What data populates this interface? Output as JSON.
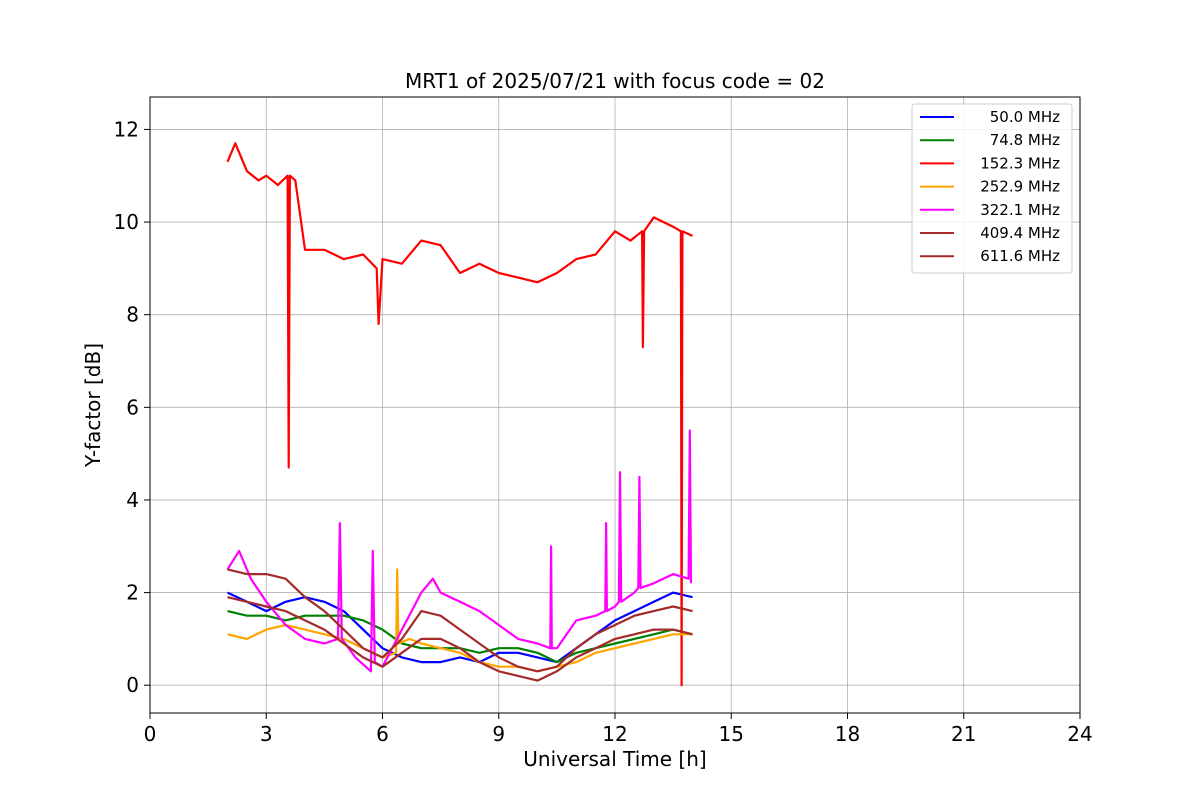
{
  "chart_data": {
    "type": "line",
    "title": "MRT1 of 2025/07/21 with focus code = 02",
    "xlabel": "Universal Time [h]",
    "ylabel": "Y-factor [dB]",
    "xlim": [
      0,
      24
    ],
    "ylim": [
      -0.6,
      12.7
    ],
    "xticks": [
      0,
      3,
      6,
      9,
      12,
      15,
      18,
      21,
      24
    ],
    "yticks": [
      0,
      2,
      4,
      6,
      8,
      10,
      12
    ],
    "grid": true,
    "legend_position": "top-right",
    "series": [
      {
        "name": "50.0 MHz",
        "color": "#0000ff",
        "x": [
          2.0,
          2.5,
          3.0,
          3.5,
          4.0,
          4.5,
          5.0,
          5.5,
          6.0,
          6.5,
          7.0,
          7.5,
          8.0,
          8.5,
          9.0,
          9.5,
          10.0,
          10.5,
          11.0,
          11.5,
          12.0,
          12.5,
          13.0,
          13.5,
          14.0
        ],
        "y": [
          2.0,
          1.8,
          1.6,
          1.8,
          1.9,
          1.8,
          1.6,
          1.2,
          0.8,
          0.6,
          0.5,
          0.5,
          0.6,
          0.5,
          0.7,
          0.7,
          0.6,
          0.5,
          0.8,
          1.1,
          1.4,
          1.6,
          1.8,
          2.0,
          1.9
        ]
      },
      {
        "name": "74.8 MHz",
        "color": "#008000",
        "x": [
          2.0,
          2.5,
          3.0,
          3.5,
          4.0,
          4.5,
          5.0,
          5.5,
          6.0,
          6.5,
          7.0,
          7.5,
          8.0,
          8.5,
          9.0,
          9.5,
          10.0,
          10.5,
          11.0,
          11.5,
          12.0,
          12.5,
          13.0,
          13.5,
          14.0
        ],
        "y": [
          1.6,
          1.5,
          1.5,
          1.4,
          1.5,
          1.5,
          1.5,
          1.4,
          1.2,
          0.9,
          0.8,
          0.8,
          0.8,
          0.7,
          0.8,
          0.8,
          0.7,
          0.5,
          0.7,
          0.8,
          0.9,
          1.0,
          1.1,
          1.2,
          1.1
        ]
      },
      {
        "name": "152.3 MHz",
        "color": "#ff0000",
        "x": [
          2.0,
          2.2,
          2.5,
          2.8,
          3.0,
          3.3,
          3.55,
          3.58,
          3.61,
          3.75,
          4.0,
          4.5,
          5.0,
          5.5,
          5.85,
          5.9,
          6.0,
          6.5,
          7.0,
          7.5,
          8.0,
          8.5,
          9.0,
          9.5,
          10.0,
          10.5,
          11.0,
          11.5,
          12.0,
          12.4,
          12.7,
          12.72,
          12.75,
          13.0,
          13.5,
          13.7,
          13.72,
          13.74,
          14.0
        ],
        "y": [
          11.3,
          11.7,
          11.1,
          10.9,
          11.0,
          10.8,
          11.0,
          4.7,
          11.0,
          10.9,
          9.4,
          9.4,
          9.2,
          9.3,
          9.0,
          7.8,
          9.2,
          9.1,
          9.6,
          9.5,
          8.9,
          9.1,
          8.9,
          8.8,
          8.7,
          8.9,
          9.2,
          9.3,
          9.8,
          9.6,
          9.8,
          7.3,
          9.8,
          10.1,
          9.9,
          9.8,
          0.0,
          9.8,
          9.7
        ]
      },
      {
        "name": "252.9 MHz",
        "color": "#ffa500",
        "x": [
          2.0,
          2.5,
          3.0,
          3.5,
          4.0,
          4.5,
          5.0,
          5.5,
          6.0,
          6.35,
          6.38,
          6.41,
          6.7,
          7.0,
          7.5,
          8.0,
          8.5,
          9.0,
          9.5,
          10.0,
          10.5,
          11.0,
          11.5,
          12.0,
          12.5,
          13.0,
          13.5,
          14.0
        ],
        "y": [
          1.1,
          1.0,
          1.2,
          1.3,
          1.2,
          1.1,
          1.0,
          0.8,
          0.6,
          0.7,
          2.5,
          0.9,
          1.0,
          0.9,
          0.8,
          0.7,
          0.5,
          0.4,
          0.4,
          0.3,
          0.4,
          0.5,
          0.7,
          0.8,
          0.9,
          1.0,
          1.1,
          1.1
        ]
      },
      {
        "name": "322.1 MHz",
        "color": "#ff00ff",
        "x": [
          2.0,
          2.3,
          2.6,
          3.0,
          3.5,
          4.0,
          4.5,
          4.85,
          4.9,
          4.95,
          5.3,
          5.7,
          5.75,
          5.8,
          6.0,
          6.5,
          7.0,
          7.3,
          7.5,
          8.0,
          8.5,
          9.0,
          9.5,
          10.0,
          10.33,
          10.35,
          10.37,
          10.5,
          11.0,
          11.5,
          11.75,
          11.77,
          11.79,
          12.0,
          12.1,
          12.13,
          12.16,
          12.5,
          12.6,
          12.63,
          12.66,
          13.0,
          13.5,
          13.9,
          13.93,
          13.96
        ],
        "y": [
          2.5,
          2.9,
          2.3,
          1.8,
          1.3,
          1.0,
          0.9,
          1.0,
          3.5,
          1.0,
          0.6,
          0.3,
          2.9,
          0.5,
          0.4,
          1.2,
          2.0,
          2.3,
          2.0,
          1.8,
          1.6,
          1.3,
          1.0,
          0.9,
          0.8,
          3.0,
          0.8,
          0.8,
          1.4,
          1.5,
          1.6,
          3.5,
          1.6,
          1.7,
          1.8,
          4.6,
          1.8,
          2.0,
          2.1,
          4.5,
          2.1,
          2.2,
          2.4,
          2.3,
          5.5,
          2.2
        ]
      },
      {
        "name": "409.4 MHz",
        "color": "#a52a2a",
        "x": [
          2.0,
          2.5,
          3.0,
          3.5,
          4.0,
          4.5,
          5.0,
          5.5,
          6.0,
          6.5,
          7.0,
          7.5,
          8.0,
          8.5,
          9.0,
          9.5,
          10.0,
          10.5,
          11.0,
          11.5,
          12.0,
          12.5,
          13.0,
          13.5,
          14.0
        ],
        "y": [
          2.5,
          2.4,
          2.4,
          2.3,
          1.9,
          1.6,
          1.2,
          0.8,
          0.6,
          1.0,
          1.6,
          1.5,
          1.2,
          0.9,
          0.6,
          0.4,
          0.3,
          0.4,
          0.8,
          1.1,
          1.3,
          1.5,
          1.6,
          1.7,
          1.6
        ]
      },
      {
        "name": "611.6 MHz",
        "color": "#a52a2a",
        "x": [
          2.0,
          2.5,
          3.0,
          3.5,
          4.0,
          4.5,
          5.0,
          5.5,
          6.0,
          6.5,
          7.0,
          7.5,
          8.0,
          8.5,
          9.0,
          9.5,
          10.0,
          10.5,
          11.0,
          11.5,
          12.0,
          12.5,
          13.0,
          13.5,
          14.0
        ],
        "y": [
          1.9,
          1.8,
          1.7,
          1.6,
          1.4,
          1.2,
          0.9,
          0.6,
          0.4,
          0.7,
          1.0,
          1.0,
          0.8,
          0.5,
          0.3,
          0.2,
          0.1,
          0.3,
          0.6,
          0.8,
          1.0,
          1.1,
          1.2,
          1.2,
          1.1
        ]
      }
    ]
  }
}
